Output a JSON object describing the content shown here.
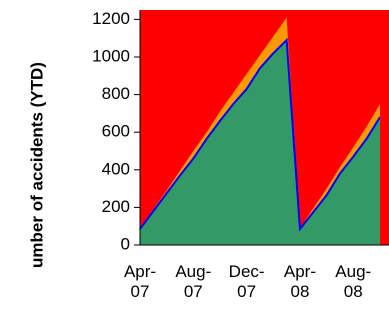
{
  "chart_data": {
    "type": "area",
    "y_label": "umber of accidents (YTD)",
    "categories": [
      "Apr-07",
      null,
      null,
      null,
      "Aug-07",
      null,
      null,
      null,
      "Dec-07",
      null,
      null,
      null,
      "Apr-08",
      null,
      null,
      null,
      "Aug-08",
      null,
      null
    ],
    "series": [
      {
        "color": "#ff9900",
        "values": [
          90,
          190,
          290,
          395,
          500,
          600,
          710,
          810,
          910,
          1010,
          1110,
          1210,
          90,
          195,
          300,
          415,
          520,
          630,
          750
        ]
      },
      {
        "color": "#339966",
        "line_color": "#0000ff",
        "values": [
          85,
          180,
          275,
          370,
          460,
          565,
          660,
          750,
          830,
          940,
          1020,
          1090,
          85,
          175,
          265,
          380,
          470,
          565,
          680
        ]
      }
    ],
    "plot_background": "#ff0000",
    "ylim": [
      0,
      1250
    ],
    "yticks": [
      0,
      200,
      400,
      600,
      800,
      1000,
      1200
    ]
  }
}
